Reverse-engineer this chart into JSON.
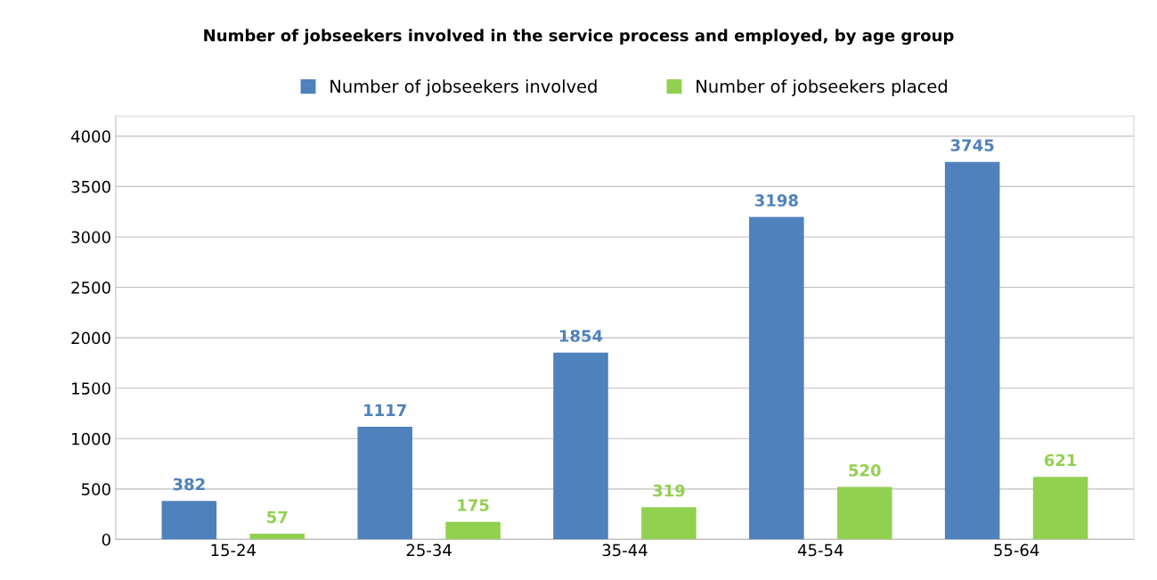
{
  "chart_data": {
    "type": "bar",
    "title": "Number of jobseekers involved in the service process and employed, by age group",
    "categories": [
      "15-24",
      "25-34",
      "35-44",
      "45-54",
      "55-64"
    ],
    "series": [
      {
        "name": "Number of jobseekers involved",
        "color": "#4f81bd",
        "values": [
          382,
          1117,
          1854,
          3198,
          3745
        ]
      },
      {
        "name": "Number of jobseekers placed",
        "color": "#92d050",
        "values": [
          57,
          175,
          319,
          520,
          621
        ]
      }
    ],
    "ylim": [
      0,
      4200
    ],
    "yticks": [
      0,
      500,
      1000,
      1500,
      2000,
      2500,
      3000,
      3500,
      4000
    ],
    "grid": "y",
    "legend": "top",
    "data_labels": true
  }
}
